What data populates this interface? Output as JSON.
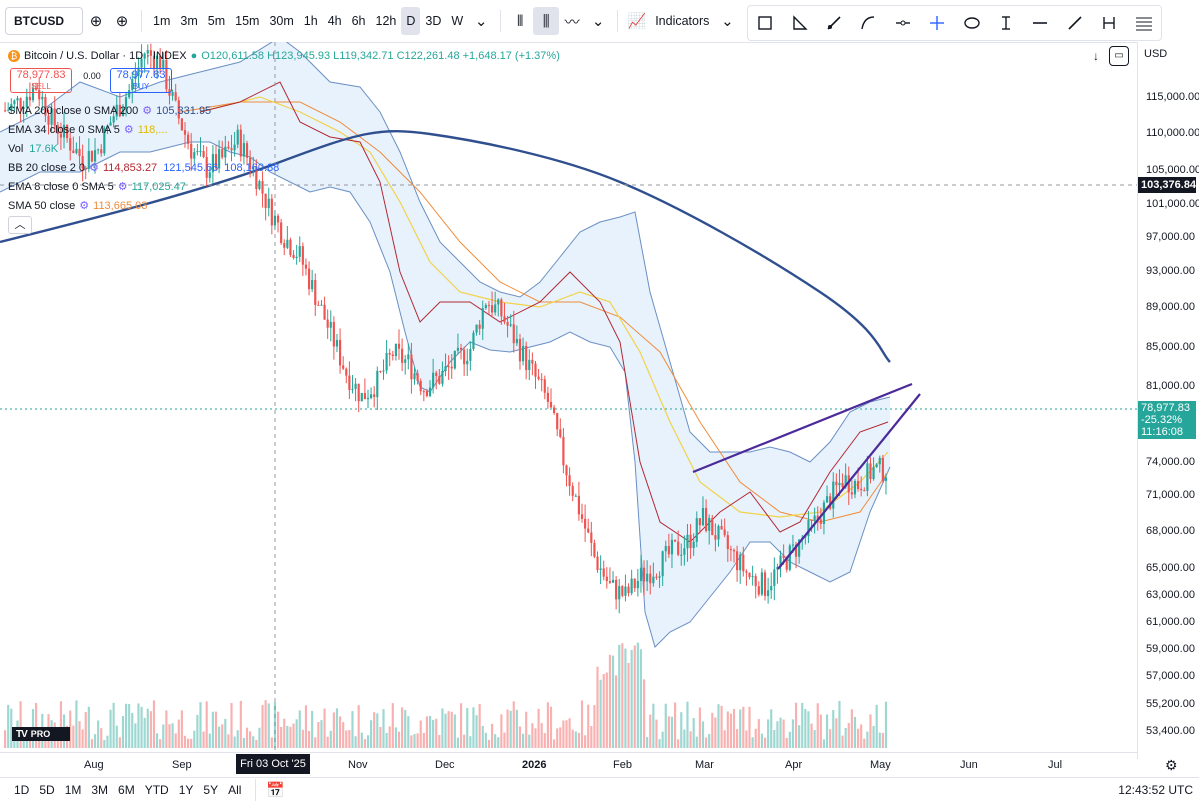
{
  "toolbar": {
    "symbol": "BTCUSD",
    "timeframes": [
      "1m",
      "3m",
      "5m",
      "15m",
      "30m",
      "1h",
      "4h",
      "6h",
      "12h",
      "D",
      "3D",
      "W"
    ],
    "active_timeframe": "D",
    "indicators_label": "Indicators"
  },
  "drawing_tools": [
    "rectangle-icon",
    "angle-icon",
    "arrow-line-icon",
    "curve-icon",
    "horizontal-ray-icon",
    "crosshair-icon",
    "ellipse-icon",
    "text-cursor-icon",
    "horizontal-line-icon",
    "trend-line-icon",
    "measure-icon",
    "fib-icon"
  ],
  "legend": {
    "title": "Bitcoin / U.S. Dollar · 1D · INDEX",
    "ohlc": "O120,611.58 H123,945.93 L119,342.71 C122,261.48 +1,648.17 (+1.37%)",
    "sell_price": "78,977.83",
    "sell_label": "SELL",
    "spread": "0.00",
    "buy_price": "78,977.83",
    "buy_label": "BUY",
    "indicators": [
      {
        "name": "SMA 200 close 0 SMA 200",
        "values": [
          "105,331.95"
        ],
        "colors": [
          "#2f4f8f"
        ]
      },
      {
        "name": "EMA 34 close 0 SMA 5",
        "values": [
          "118,..."
        ],
        "colors": [
          "#f5d020"
        ]
      },
      {
        "name": "Vol",
        "values": [
          "17.6K"
        ],
        "colors": [
          "#26a69a"
        ]
      },
      {
        "name": "BB 20 close 2 0",
        "values": [
          "114,853.27",
          "121,545.66",
          "108,160.88"
        ],
        "colors": [
          "#b22833",
          "#2962ff",
          "#2962ff"
        ]
      },
      {
        "name": "EMA 8 close 0 SMA 5",
        "values": [
          "117,025.47"
        ],
        "colors": [
          "#26a69a"
        ]
      },
      {
        "name": "SMA 50 close",
        "values": [
          "113,665.03"
        ],
        "colors": [
          "#f08c3a"
        ]
      }
    ]
  },
  "price_axis": {
    "currency": "USD",
    "ticks": [
      "115,000.00",
      "110,000.00",
      "105,000.00",
      "101,000.00",
      "97,000.00",
      "93,000.00",
      "89,000.00",
      "85,000.00",
      "81,000.00",
      "74,000.00",
      "71,000.00",
      "68,000.00",
      "65,000.00",
      "63,000.00",
      "61,000.00",
      "59,000.00",
      "57,000.00",
      "55,200.00",
      "53,400.00"
    ],
    "crosshair_price": "103,376.84",
    "last_price": "78,977.83",
    "last_change": "-25.32%",
    "countdown": "11:16:08"
  },
  "time_axis": {
    "ticks": [
      "Aug",
      "Sep",
      "Nov",
      "Dec",
      "2026",
      "Feb",
      "Mar",
      "Apr",
      "May",
      "Jun",
      "Jul"
    ],
    "crosshair_date": "Fri 03 Oct '25"
  },
  "bottom_bar": {
    "ranges": [
      "1D",
      "5D",
      "1M",
      "3M",
      "6M",
      "YTD",
      "1Y",
      "5Y",
      "All"
    ],
    "clock": "12:43:52 UTC"
  },
  "logo_text": "PRO",
  "colors": {
    "up": "#26a69a",
    "down": "#ef5350",
    "sma200": "#2f4f8f",
    "bb": "#6a8fc4",
    "bbfill": "#e3f0fb",
    "wedge": "#4b2a9a",
    "ema34": "#f2d24a",
    "sma50": "#f08c3a",
    "ema8": "#b22833"
  },
  "chart_data": {
    "type": "candlestick",
    "symbol": "BTCUSD",
    "interval": "1D",
    "price_range": [
      52000,
      122000
    ],
    "x_labels": [
      "Aug",
      "Sep",
      "Oct",
      "Nov",
      "Dec",
      "2026",
      "Feb",
      "Mar",
      "Apr",
      "May",
      "Jun",
      "Jul"
    ],
    "close_series": [
      116000,
      117000,
      118500,
      115000,
      113000,
      111000,
      112000,
      115500,
      118000,
      122000,
      121000,
      116000,
      112000,
      110000,
      111000,
      113000,
      110000,
      106000,
      103000,
      101000,
      97000,
      93000,
      89000,
      86500,
      88000,
      91000,
      90000,
      87500,
      88500,
      90000,
      91500,
      96500,
      95000,
      92000,
      89000,
      86000,
      80000,
      75000,
      70000,
      67000,
      66000,
      68000,
      69000,
      70500,
      71500,
      74000,
      72000,
      70000,
      68000,
      67000,
      69000,
      71000,
      73000,
      75500,
      78000,
      77500,
      79000
    ],
    "last_close": 78977.83,
    "sma200": [
      104000,
      106000,
      108000,
      109500,
      110500,
      111000,
      110800,
      110000,
      108500,
      106500,
      104500,
      102000,
      99000,
      96000,
      92500,
      88500,
      85000,
      83500
    ]
  }
}
